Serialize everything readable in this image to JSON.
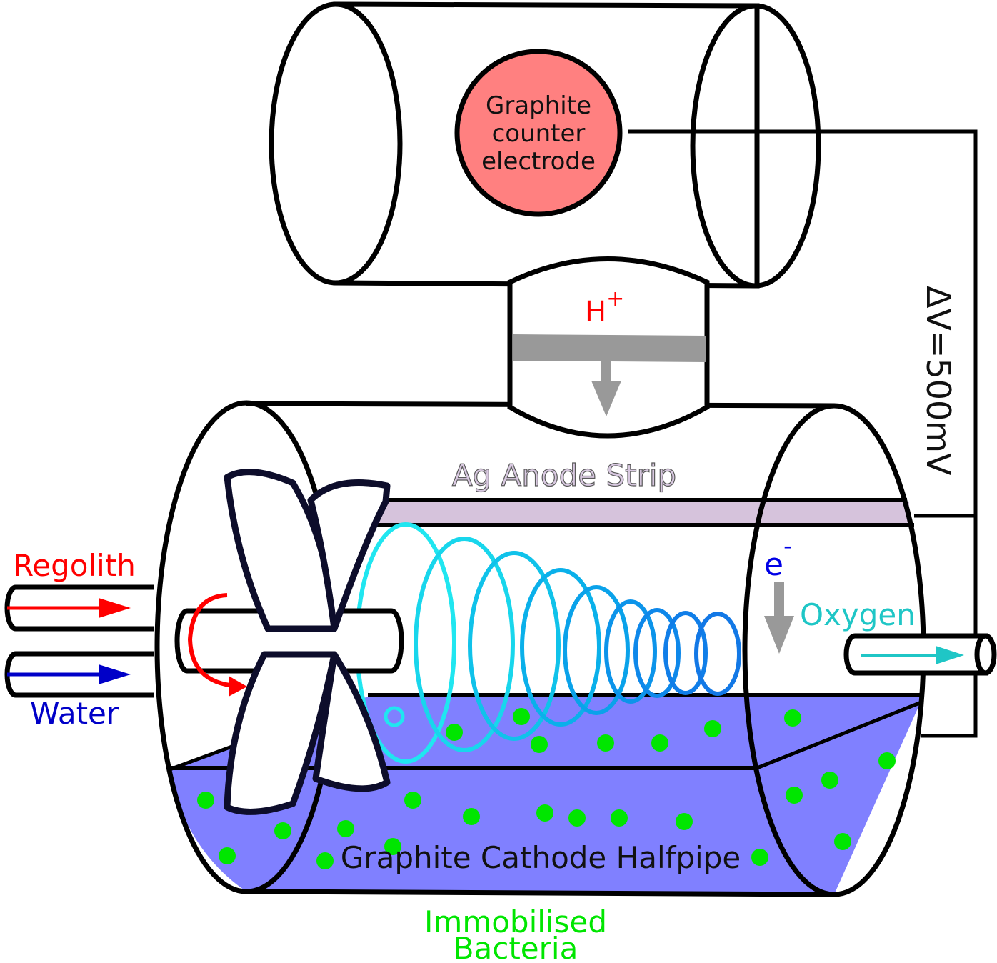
{
  "labels": {
    "counter_electrode": [
      "Graphite",
      "counter",
      "electrode"
    ],
    "proton": "H",
    "proton_charge": "+",
    "anode": "Ag Anode Strip",
    "voltage": "ΔV=500mV",
    "regolith": "Regolith",
    "water": "Water",
    "electron": "e",
    "electron_charge": "-",
    "oxygen": "Oxygen",
    "cathode": "Graphite Cathode Halfpipe",
    "bacteria": [
      "Immobilised",
      "Bacteria"
    ]
  },
  "colors": {
    "counter_electrode_fill": "#ff8080",
    "anode_strip": "#d6c3dc",
    "anode_text": "#d8c8e0",
    "liquid": "#8080ff",
    "bacteria": "#00e600",
    "regolith": "#ff0000",
    "water": "#0000c8",
    "electron": "#0000e6",
    "oxygen": "#1fc6c6",
    "membrane": "#999999",
    "blade_stroke": "#0d0d2b"
  },
  "coil_colors": [
    "#20e6f0",
    "#18d6ec",
    "#10c2ea",
    "#0ab0ea",
    "#0aa2ea",
    "#0c94ea",
    "#0e88ea",
    "#107ee8",
    "#1278e6"
  ],
  "icons": [
    "curved-rotation-arrow-icon",
    "down-arrow-icon"
  ]
}
